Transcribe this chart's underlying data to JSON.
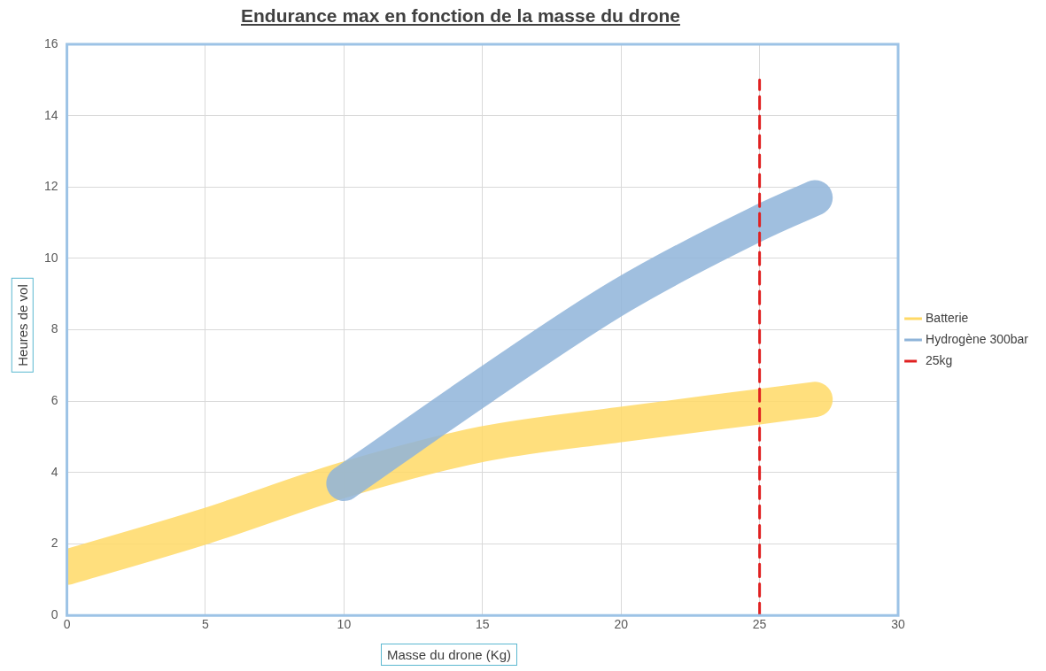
{
  "chart_data": {
    "type": "line",
    "title": "Endurance max en fonction de la masse du drone",
    "xlabel": "Masse du drone (Kg)",
    "ylabel": "Heures de vol",
    "xlim": [
      0,
      30
    ],
    "xticks": [
      0,
      5,
      10,
      15,
      20,
      25,
      30
    ],
    "ylim": [
      0,
      16
    ],
    "yticks": [
      0,
      2,
      4,
      6,
      8,
      10,
      12,
      14,
      16
    ],
    "grid": true,
    "legend": "right",
    "marker": "none",
    "series": [
      {
        "name": "Batterie",
        "color": "#ffd966",
        "x": [
          0,
          5,
          10,
          15,
          20,
          25,
          27
        ],
        "values": [
          1.35,
          2.5,
          3.8,
          4.8,
          5.35,
          5.85,
          6.05
        ]
      },
      {
        "name": "Hydrogène 300bar",
        "color": "#8fb4d9",
        "x": [
          10,
          15,
          20,
          25,
          27
        ],
        "values": [
          3.7,
          6.4,
          8.95,
          11.0,
          11.7
        ]
      },
      {
        "name": "25kg",
        "color": "#e02020",
        "line_style": "dashed",
        "x": [
          25,
          25
        ],
        "values": [
          0,
          15
        ]
      }
    ]
  }
}
